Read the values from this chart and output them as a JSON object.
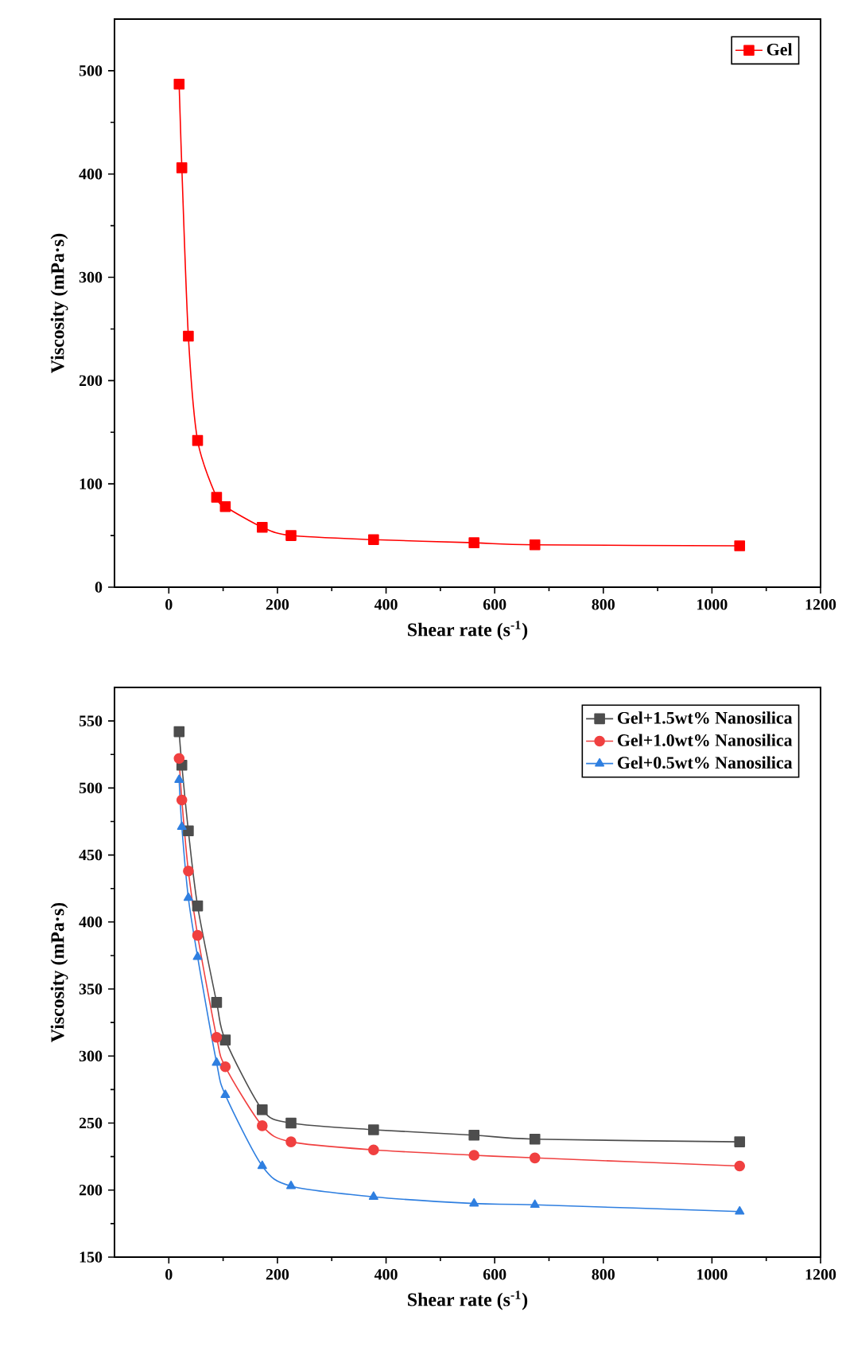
{
  "chart_data": [
    {
      "type": "line",
      "xlabel": "Shear rate (s$^{-1}$)",
      "ylabel": "Viscosity (mPa·s)",
      "x": [
        19,
        24,
        36,
        53,
        88,
        104,
        172,
        225,
        377,
        562,
        674,
        1051
      ],
      "series": [
        {
          "name": "Gel",
          "color": "#ff0000",
          "marker": "square",
          "values": [
            487,
            406,
            243,
            142,
            87,
            78,
            58,
            50,
            46,
            43,
            41,
            40
          ]
        }
      ],
      "xlim": [
        -100,
        1200
      ],
      "ylim": [
        0,
        550
      ],
      "xticks": [
        0,
        200,
        400,
        600,
        800,
        1000,
        1200
      ],
      "yticks": [
        0,
        100,
        200,
        300,
        400,
        500
      ],
      "legend": "top right",
      "grid": false
    },
    {
      "type": "line",
      "xlabel": "Shear rate (s$^{-1}$)",
      "ylabel": "Viscosity (mPa·s)",
      "x": [
        19,
        24,
        36,
        53,
        88,
        104,
        172,
        225,
        377,
        562,
        674,
        1051
      ],
      "series": [
        {
          "name": "Gel+1.5wt% Nanosilica",
          "color": "#4d4d4d",
          "marker": "square",
          "values": [
            542,
            517,
            468,
            412,
            340,
            312,
            260,
            250,
            245,
            241,
            238,
            236
          ]
        },
        {
          "name": "Gel+1.0wt% Nanosilica",
          "color": "#f04040",
          "marker": "circle",
          "values": [
            522,
            491,
            438,
            390,
            314,
            292,
            248,
            236,
            230,
            226,
            224,
            218
          ]
        },
        {
          "name": "Gel+0.5wt% Nanosilica",
          "color": "#2f7fe0",
          "marker": "triangle",
          "values": [
            506,
            471,
            418,
            374,
            295,
            271,
            218,
            203,
            195,
            190,
            189,
            184
          ]
        }
      ],
      "xlim": [
        -100,
        1200
      ],
      "ylim": [
        150,
        575
      ],
      "xticks": [
        0,
        200,
        400,
        600,
        800,
        1000,
        1200
      ],
      "yticks": [
        150,
        200,
        250,
        300,
        350,
        400,
        450,
        500,
        550
      ],
      "legend": "top right",
      "grid": false
    }
  ]
}
